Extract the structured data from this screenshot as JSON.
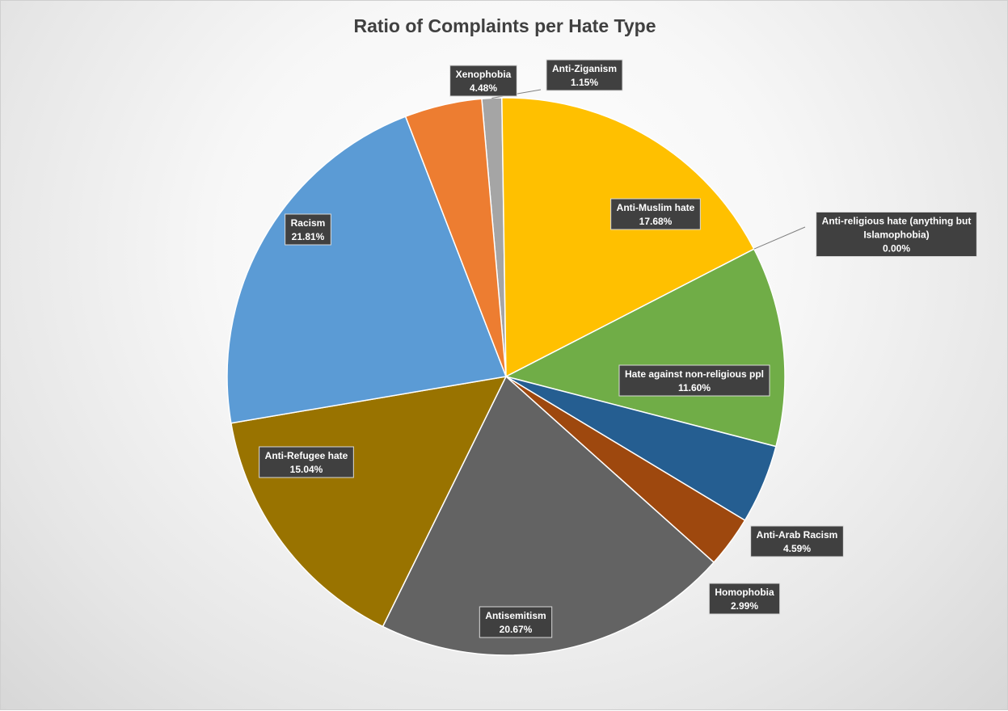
{
  "chart_data": {
    "type": "pie",
    "title": "Ratio of Complaints per Hate Type",
    "start_angle_deg": -5,
    "slices": [
      {
        "name": "Anti-Ziganism",
        "value": 1.15,
        "label": "1.15%",
        "color": "#A5A5A5"
      },
      {
        "name": "Anti-Muslim  hate",
        "value": 17.68,
        "label": "17.68%",
        "color": "#FFC000"
      },
      {
        "name": "Anti-religious hate (anything but Islamophobia)",
        "value": 0.0,
        "label": "0.00%",
        "color": "#264478"
      },
      {
        "name": "Hate against  non-religious ppl",
        "value": 11.6,
        "label": "11.60%",
        "color": "#70AD47"
      },
      {
        "name": "Anti-Arab Racism",
        "value": 4.59,
        "label": "4.59%",
        "color": "#255E91"
      },
      {
        "name": "Homophobia",
        "value": 2.99,
        "label": "2.99%",
        "color": "#9E480E"
      },
      {
        "name": "Antisemitism",
        "value": 20.67,
        "label": "20.67%",
        "color": "#636363"
      },
      {
        "name": "Anti-Refugee hate",
        "value": 15.04,
        "label": "15.04%",
        "color": "#997300"
      },
      {
        "name": "Racism",
        "value": 21.81,
        "label": "21.81%",
        "color": "#5B9BD5"
      },
      {
        "name": "Xenophobia",
        "value": 4.48,
        "label": "4.48%",
        "color": "#ED7D31"
      }
    ]
  }
}
